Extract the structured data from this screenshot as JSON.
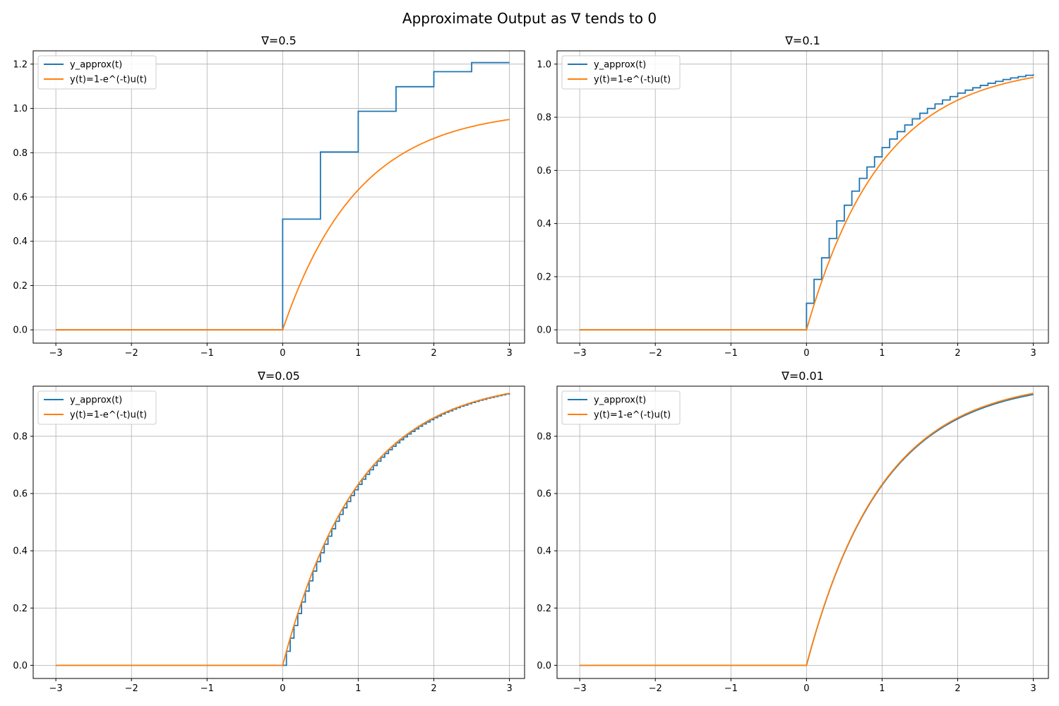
{
  "figure": {
    "title": "Approximate Output as ∇ tends to 0"
  },
  "colors": {
    "approx": "#1f77b4",
    "exact": "#ff7f0e",
    "grid": "#b0b0b0",
    "axes": "#000000"
  },
  "chart_data": [
    {
      "type": "line",
      "title": "∇=0.5",
      "delta": 0.5,
      "xlim": [
        -3.3,
        3.2
      ],
      "ylim": [
        -0.06,
        1.26
      ],
      "xticks": [
        -3,
        -2,
        -1,
        0,
        1,
        2,
        3
      ],
      "yticks": [
        0.0,
        0.2,
        0.4,
        0.6,
        0.8,
        1.0,
        1.2
      ],
      "grid": true,
      "legend": "top-left",
      "series": [
        {
          "name": "y_approx(t)",
          "kind": "staircase",
          "x_range": [
            -3,
            3
          ],
          "step_values": [
            0.5,
            0.803,
            0.987,
            1.098,
            1.166,
            1.207
          ]
        },
        {
          "name": "y(t)=1-e^(-t)u(t)",
          "kind": "curve",
          "x_range": [
            -3,
            3
          ],
          "samples": [
            [
              0,
              0
            ],
            [
              0.5,
              0.393
            ],
            [
              1,
              0.632
            ],
            [
              1.5,
              0.777
            ],
            [
              2,
              0.865
            ],
            [
              2.5,
              0.918
            ],
            [
              3,
              0.95
            ]
          ]
        }
      ]
    },
    {
      "type": "line",
      "title": "∇=0.1",
      "delta": 0.1,
      "xlim": [
        -3.3,
        3.2
      ],
      "ylim": [
        -0.05,
        1.05
      ],
      "xticks": [
        -3,
        -2,
        -1,
        0,
        1,
        2,
        3
      ],
      "yticks": [
        0.0,
        0.2,
        0.4,
        0.6,
        0.8,
        1.0
      ],
      "grid": true,
      "legend": "top-left",
      "series": [
        {
          "name": "y_approx(t)",
          "kind": "staircase",
          "x_range": [
            -3,
            3
          ],
          "step_values": [
            0.1,
            0.19,
            0.271,
            0.344,
            0.41,
            0.469,
            0.522,
            0.57,
            0.613,
            0.651,
            0.686,
            0.718,
            0.746,
            0.771,
            0.794,
            0.815,
            0.833,
            0.85,
            0.865,
            0.878,
            0.891,
            0.902,
            0.911,
            0.92,
            0.928,
            0.935,
            0.942,
            0.948,
            0.953,
            0.958,
            0.962
          ]
        },
        {
          "name": "y(t)=1-e^(-t)u(t)",
          "kind": "curve",
          "x_range": [
            -3,
            3
          ],
          "samples": [
            [
              0,
              0
            ],
            [
              0.5,
              0.393
            ],
            [
              1,
              0.632
            ],
            [
              1.5,
              0.777
            ],
            [
              2,
              0.865
            ],
            [
              2.5,
              0.918
            ],
            [
              3,
              0.95
            ]
          ]
        }
      ]
    },
    {
      "type": "line",
      "title": "∇=0.05",
      "delta": 0.05,
      "xlim": [
        -3.3,
        3.2
      ],
      "ylim": [
        -0.046,
        0.975
      ],
      "xticks": [
        -3,
        -2,
        -1,
        0,
        1,
        2,
        3
      ],
      "yticks": [
        0.0,
        0.2,
        0.4,
        0.6,
        0.8
      ],
      "grid": true,
      "legend": "top-left",
      "series": [
        {
          "name": "y_approx(t)",
          "kind": "staircase",
          "x_range": [
            -3,
            3
          ],
          "step_values": [
            0.0,
            0.049,
            0.095,
            0.139,
            0.181,
            0.221,
            0.259,
            0.295,
            0.329,
            0.362,
            0.393,
            0.423,
            0.451,
            0.477,
            0.503,
            0.527,
            0.55,
            0.572,
            0.593,
            0.613,
            0.632,
            0.65,
            0.667,
            0.683,
            0.698,
            0.713,
            0.727,
            0.74,
            0.753,
            0.765,
            0.777,
            0.788,
            0.798,
            0.808,
            0.817,
            0.826,
            0.835,
            0.843,
            0.85,
            0.858,
            0.865,
            0.871,
            0.878,
            0.884,
            0.889,
            0.895,
            0.9,
            0.905,
            0.909,
            0.914,
            0.918,
            0.922,
            0.926,
            0.929,
            0.933,
            0.936,
            0.939,
            0.942,
            0.945,
            0.948,
            0.95
          ]
        },
        {
          "name": "y(t)=1-e^(-t)u(t)",
          "kind": "curve",
          "x_range": [
            -3,
            3
          ],
          "samples": [
            [
              0,
              0
            ],
            [
              0.5,
              0.393
            ],
            [
              1,
              0.632
            ],
            [
              1.5,
              0.777
            ],
            [
              2,
              0.865
            ],
            [
              2.5,
              0.918
            ],
            [
              3,
              0.95
            ]
          ]
        }
      ]
    },
    {
      "type": "line",
      "title": "∇=0.01",
      "delta": 0.01,
      "xlim": [
        -3.3,
        3.2
      ],
      "ylim": [
        -0.046,
        0.975
      ],
      "xticks": [
        -3,
        -2,
        -1,
        0,
        1,
        2,
        3
      ],
      "yticks": [
        0.0,
        0.2,
        0.4,
        0.6,
        0.8
      ],
      "grid": true,
      "legend": "top-left",
      "series": [
        {
          "name": "y_approx(t)",
          "kind": "curve",
          "x_range": [
            -3,
            3
          ],
          "samples": [
            [
              0,
              0
            ],
            [
              0.5,
              0.39
            ],
            [
              1,
              0.628
            ],
            [
              1.5,
              0.773
            ],
            [
              2,
              0.861
            ],
            [
              2.5,
              0.914
            ],
            [
              3,
              0.946
            ]
          ]
        },
        {
          "name": "y(t)=1-e^(-t)u(t)",
          "kind": "curve",
          "x_range": [
            -3,
            3
          ],
          "samples": [
            [
              0,
              0
            ],
            [
              0.5,
              0.393
            ],
            [
              1,
              0.632
            ],
            [
              1.5,
              0.777
            ],
            [
              2,
              0.865
            ],
            [
              2.5,
              0.918
            ],
            [
              3,
              0.95
            ]
          ]
        }
      ]
    }
  ]
}
